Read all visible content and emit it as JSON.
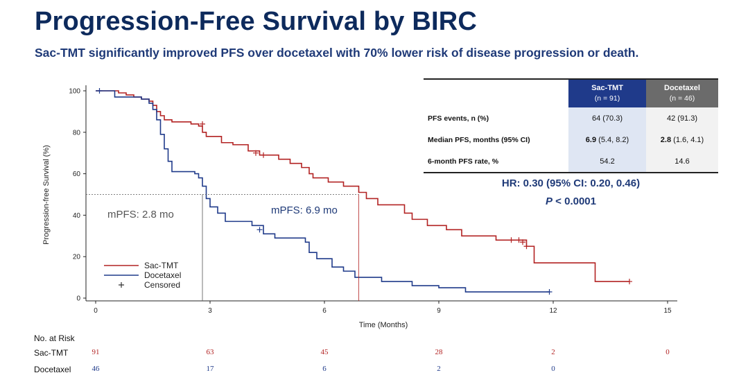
{
  "slide": {
    "title": "Progression-Free Survival by BIRC",
    "subtitle": "Sac-TMT significantly improved PFS over docetaxel with 70% lower risk of disease progression or death."
  },
  "colors": {
    "sac": "#b22222",
    "doc": "#1f3a8a",
    "title": "#0d2a5c"
  },
  "chart_data": {
    "type": "line",
    "subtype": "kaplan-meier",
    "xlabel": "Time (Months)",
    "ylabel": "Progression-free Survival (%)",
    "xlim": [
      0,
      15
    ],
    "ylim": [
      0,
      100
    ],
    "xticks": [
      0,
      3,
      6,
      9,
      12,
      15
    ],
    "yticks": [
      0,
      20,
      40,
      60,
      80,
      100
    ],
    "legend_position": "bottom-left",
    "legend": {
      "sac": "Sac-TMT",
      "doc": "Docetaxel",
      "censored": "Censored"
    },
    "reference_line_y": 50,
    "annotations": {
      "doc_median_label": "mPFS: 2.8 mo",
      "doc_median_x": 2.8,
      "sac_median_label": "mPFS: 6.9 mo",
      "sac_median_x": 6.9
    },
    "series": [
      {
        "name": "Sac-TMT",
        "color": "#b22222",
        "x": [
          0,
          0.6,
          0.8,
          1.0,
          1.2,
          1.4,
          1.5,
          1.6,
          1.7,
          1.8,
          2.0,
          2.2,
          2.5,
          2.7,
          2.8,
          2.9,
          3.3,
          3.6,
          4.0,
          4.3,
          4.8,
          5.1,
          5.4,
          5.6,
          5.7,
          6.1,
          6.5,
          6.9,
          7.1,
          7.4,
          8.1,
          8.3,
          8.7,
          9.2,
          9.6,
          10.5,
          11.3,
          11.5,
          13.1,
          14.0
        ],
        "y": [
          100,
          99,
          98,
          97,
          96,
          95,
          93,
          90,
          88,
          86,
          85,
          85,
          84,
          83,
          80,
          78,
          75,
          74,
          71,
          69,
          67,
          65,
          63,
          60,
          58,
          56,
          54,
          51,
          48,
          45,
          41,
          38,
          35,
          33,
          30,
          28,
          25,
          17,
          8,
          8
        ],
        "censored": [
          [
            2.8,
            84
          ],
          [
            4.2,
            70
          ],
          [
            4.4,
            69
          ],
          [
            10.9,
            28
          ],
          [
            11.1,
            28
          ],
          [
            11.2,
            27
          ],
          [
            11.3,
            25
          ],
          [
            14.0,
            8
          ]
        ]
      },
      {
        "name": "Docetaxel",
        "color": "#1f3a8a",
        "x": [
          0,
          0.5,
          1.2,
          1.4,
          1.5,
          1.6,
          1.7,
          1.8,
          1.9,
          2.0,
          2.1,
          2.3,
          2.6,
          2.7,
          2.8,
          2.9,
          3.0,
          3.2,
          3.4,
          4.1,
          4.4,
          4.7,
          5.5,
          5.6,
          5.8,
          6.2,
          6.5,
          6.8,
          7.0,
          7.5,
          8.3,
          9.0,
          9.7,
          11.9
        ],
        "y": [
          100,
          97,
          96,
          94,
          91,
          86,
          79,
          72,
          66,
          61,
          61,
          61,
          60,
          58,
          54,
          48,
          44,
          41,
          37,
          35,
          31,
          29,
          27,
          22,
          19,
          15,
          13,
          10,
          10,
          8,
          6,
          5,
          3,
          3
        ],
        "censored": [
          [
            0.1,
            100
          ],
          [
            4.3,
            33
          ],
          [
            11.9,
            3
          ]
        ]
      }
    ],
    "table": {
      "columns": [
        {
          "name": "Sac-TMT",
          "n": "(n = 91)"
        },
        {
          "name": "Docetaxel",
          "n": "(n = 46)"
        }
      ],
      "rows": [
        {
          "label": "PFS events, n (%)",
          "sac": "64 (70.3)",
          "doc": "42 (91.3)"
        },
        {
          "label": "Median PFS, months (95% CI)",
          "sac_bold": "6.9",
          "sac": "(5.4, 8.2)",
          "doc_bold": "2.8",
          "doc": "(1.6, 4.1)"
        },
        {
          "label": "6-month PFS rate, %",
          "sac": "54.2",
          "doc": "14.6"
        }
      ]
    },
    "hazard_ratio": "HR: 0.30 (95% CI: 0.20, 0.46)",
    "p_value": {
      "p": "P",
      "rest": " < 0.0001"
    },
    "number_at_risk": {
      "label": "No. at Risk",
      "times": [
        0,
        3,
        6,
        9,
        12,
        15
      ],
      "rows": [
        {
          "name": "Sac-TMT",
          "values": [
            "91",
            "63",
            "45",
            "28",
            "2",
            "0"
          ]
        },
        {
          "name": "Docetaxel",
          "values": [
            "46",
            "17",
            "6",
            "2",
            "0",
            ""
          ]
        }
      ]
    }
  }
}
